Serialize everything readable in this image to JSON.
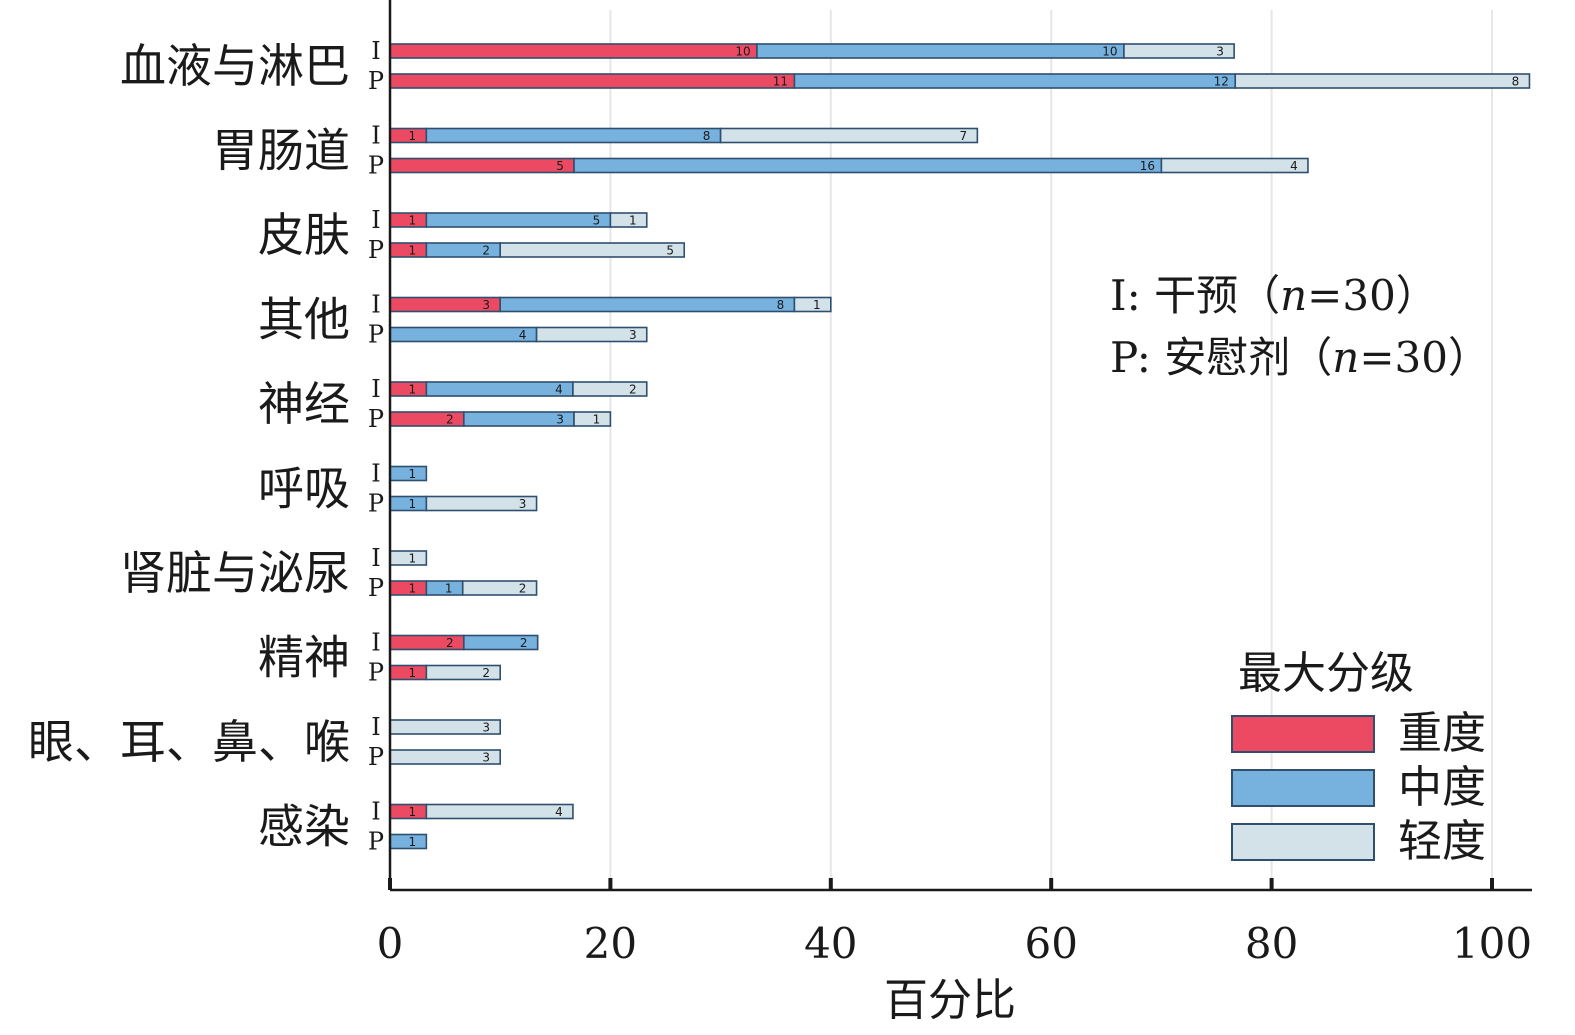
{
  "chart_data": {
    "type": "bar",
    "orientation": "horizontal",
    "stacked": true,
    "xlabel": "百分比",
    "xlim": [
      0,
      100
    ],
    "xticks": [
      0,
      20,
      40,
      60,
      80,
      100
    ],
    "grid": "vertical",
    "group_labels": [
      "I",
      "P"
    ],
    "categories": [
      "血液与淋巴",
      "胃肠道",
      "皮肤",
      "其他",
      "神经",
      "呼吸",
      "肾脏与泌尿",
      "精神",
      "眼、耳、鼻、喉",
      "感染"
    ],
    "series": [
      {
        "name": "重度",
        "color": "#ec4a63",
        "counts": [
          [
            10,
            11
          ],
          [
            1,
            5
          ],
          [
            1,
            1
          ],
          [
            3,
            0
          ],
          [
            1,
            2
          ],
          [
            0,
            0
          ],
          [
            0,
            1
          ],
          [
            2,
            1
          ],
          [
            0,
            0
          ],
          [
            1,
            0
          ]
        ],
        "percent": [
          [
            33.3,
            36.7
          ],
          [
            3.3,
            16.7
          ],
          [
            3.3,
            3.3
          ],
          [
            10.0,
            0
          ],
          [
            3.3,
            6.7
          ],
          [
            0,
            0
          ],
          [
            0,
            3.3
          ],
          [
            6.7,
            3.3
          ],
          [
            0,
            0
          ],
          [
            3.3,
            0
          ]
        ]
      },
      {
        "name": "中度",
        "color": "#77b1de",
        "counts": [
          [
            10,
            12
          ],
          [
            8,
            16
          ],
          [
            5,
            2
          ],
          [
            8,
            4
          ],
          [
            4,
            3
          ],
          [
            1,
            1
          ],
          [
            0,
            1
          ],
          [
            2,
            0
          ],
          [
            0,
            0
          ],
          [
            0,
            1
          ]
        ],
        "percent": [
          [
            33.3,
            40.0
          ],
          [
            26.7,
            53.3
          ],
          [
            16.7,
            6.7
          ],
          [
            26.7,
            13.3
          ],
          [
            13.3,
            10.0
          ],
          [
            3.3,
            3.3
          ],
          [
            0,
            3.3
          ],
          [
            6.7,
            0
          ],
          [
            0,
            0
          ],
          [
            0,
            3.3
          ]
        ]
      },
      {
        "name": "轻度",
        "color": "#d3e1e9",
        "counts": [
          [
            3,
            8
          ],
          [
            7,
            4
          ],
          [
            1,
            5
          ],
          [
            1,
            3
          ],
          [
            2,
            1
          ],
          [
            0,
            3
          ],
          [
            1,
            2
          ],
          [
            0,
            2
          ],
          [
            3,
            3
          ],
          [
            4,
            0
          ]
        ],
        "percent": [
          [
            10.0,
            26.7
          ],
          [
            23.3,
            13.3
          ],
          [
            3.3,
            16.7
          ],
          [
            3.3,
            10.0
          ],
          [
            6.7,
            3.3
          ],
          [
            0,
            10.0
          ],
          [
            3.3,
            6.7
          ],
          [
            0,
            6.7
          ],
          [
            10.0,
            10.0
          ],
          [
            13.3,
            0
          ]
        ]
      }
    ],
    "annotation": {
      "line1_prefix": "I: 干预（",
      "line1_n": "n",
      "line1_suffix": "=30）",
      "line2_prefix": "P: 安慰剂（",
      "line2_n": "n",
      "line2_suffix": "=30）"
    },
    "legend": {
      "title": "最大分级",
      "placement": "bottom-right",
      "items": [
        {
          "label": "重度",
          "color": "#ec4a63"
        },
        {
          "label": "中度",
          "color": "#77b1de"
        },
        {
          "label": "轻度",
          "color": "#d3e1e9"
        }
      ]
    }
  }
}
